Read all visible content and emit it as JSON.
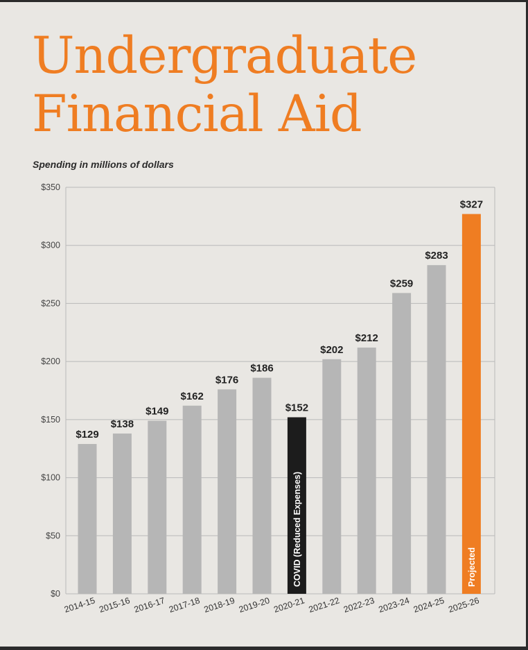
{
  "header": {
    "title_line1": "Undergraduate",
    "title_line2": "Financial Aid",
    "subtitle": "Spending in millions of dollars"
  },
  "colors": {
    "background": "#e9e7e3",
    "title": "#ef7d22",
    "bar_default": "#b6b6b6",
    "bar_covid": "#1c1c1c",
    "bar_projected": "#ef7d22",
    "grid": "#b9b9b9",
    "text": "#222222"
  },
  "chart_data": {
    "type": "bar",
    "title": "Undergraduate Financial Aid",
    "subtitle": "Spending in millions of dollars",
    "xlabel": "",
    "ylabel": "",
    "categories": [
      "2014-15",
      "2015-16",
      "2016-17",
      "2017-18",
      "2018-19",
      "2019-20",
      "2020-21",
      "2021-22",
      "2022-23",
      "2023-24",
      "2024-25",
      "2025-26"
    ],
    "values": [
      129,
      138,
      149,
      162,
      176,
      186,
      152,
      202,
      212,
      259,
      283,
      327
    ],
    "value_labels": [
      "$129",
      "$138",
      "$149",
      "$162",
      "$176",
      "$186",
      "$152",
      "$202",
      "$212",
      "$259",
      "$283",
      "$327"
    ],
    "bar_styles": [
      "default",
      "default",
      "default",
      "default",
      "default",
      "default",
      "covid",
      "default",
      "default",
      "default",
      "default",
      "projected"
    ],
    "bar_annotations": [
      "",
      "",
      "",
      "",
      "",
      "",
      "COVID (Reduced Expenses)",
      "",
      "",
      "",
      "",
      "Projected"
    ],
    "ylim": [
      0,
      350
    ],
    "yticks": [
      0,
      50,
      100,
      150,
      200,
      250,
      300,
      350
    ],
    "ytick_labels": [
      "$0",
      "$50",
      "$100",
      "$150",
      "$200",
      "$250",
      "$300",
      "$350"
    ],
    "grid": true,
    "legend": "none"
  }
}
